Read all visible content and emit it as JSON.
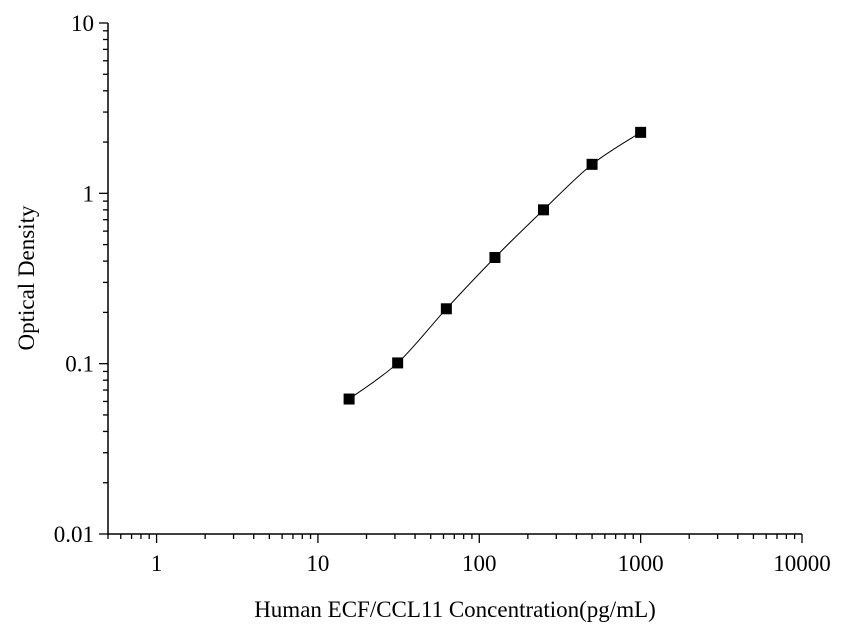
{
  "chart_data": {
    "type": "scatter",
    "xlabel": "Human ECF/CCL11 Concentration(pg/mL)",
    "ylabel": "Optical Density",
    "x_scale": "log",
    "y_scale": "log",
    "xlim": [
      0.5,
      10000
    ],
    "ylim": [
      0.01,
      10
    ],
    "x_ticks": [
      {
        "value": 1,
        "label": "1"
      },
      {
        "value": 10,
        "label": "10"
      },
      {
        "value": 100,
        "label": "100"
      },
      {
        "value": 1000,
        "label": "1000"
      },
      {
        "value": 10000,
        "label": "10000"
      }
    ],
    "y_ticks": [
      {
        "value": 0.01,
        "label": "0.01"
      },
      {
        "value": 0.1,
        "label": "0.1"
      },
      {
        "value": 1,
        "label": "1"
      },
      {
        "value": 10,
        "label": "10"
      }
    ],
    "series": [
      {
        "x": [
          15.6,
          31.2,
          62.5,
          125,
          250,
          500,
          1000
        ],
        "y": [
          0.062,
          0.101,
          0.21,
          0.42,
          0.8,
          1.48,
          2.28
        ],
        "marker": "square",
        "connect": "smooth line"
      }
    ],
    "grid": false,
    "legend": "none",
    "colors": {
      "marker": "#000000",
      "line": "#000000",
      "axis": "#000000"
    }
  }
}
